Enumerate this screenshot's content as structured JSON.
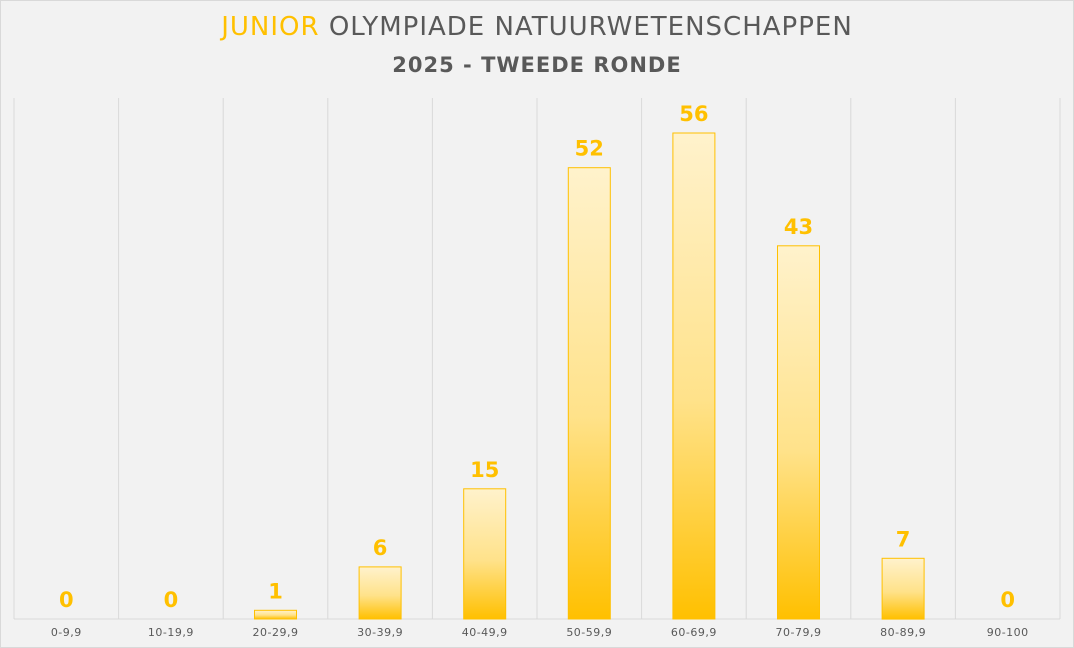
{
  "chart_data": {
    "type": "bar",
    "title_accent": "JUNIOR",
    "title_rest": "OLYMPIADE NATUURWETENSCHAPPEN",
    "subtitle": "2025 - TWEEDE RONDE",
    "categories": [
      "0-9,9",
      "10-19,9",
      "20-29,9",
      "30-39,9",
      "40-49,9",
      "50-59,9",
      "60-69,9",
      "70-79,9",
      "80-89,9",
      "90-100"
    ],
    "values": [
      0,
      0,
      1,
      6,
      15,
      52,
      56,
      43,
      7,
      0
    ],
    "ylim": [
      0,
      60
    ],
    "grid": "vertical",
    "data_labels": true,
    "colors": {
      "bar_top": "#fff2cc",
      "bar_bottom": "#ffc000",
      "bar_border": "#ffc000",
      "label": "#ffc000",
      "text": "#595959",
      "grid": "#d9d9d9",
      "background": "#f2f2f2"
    }
  }
}
